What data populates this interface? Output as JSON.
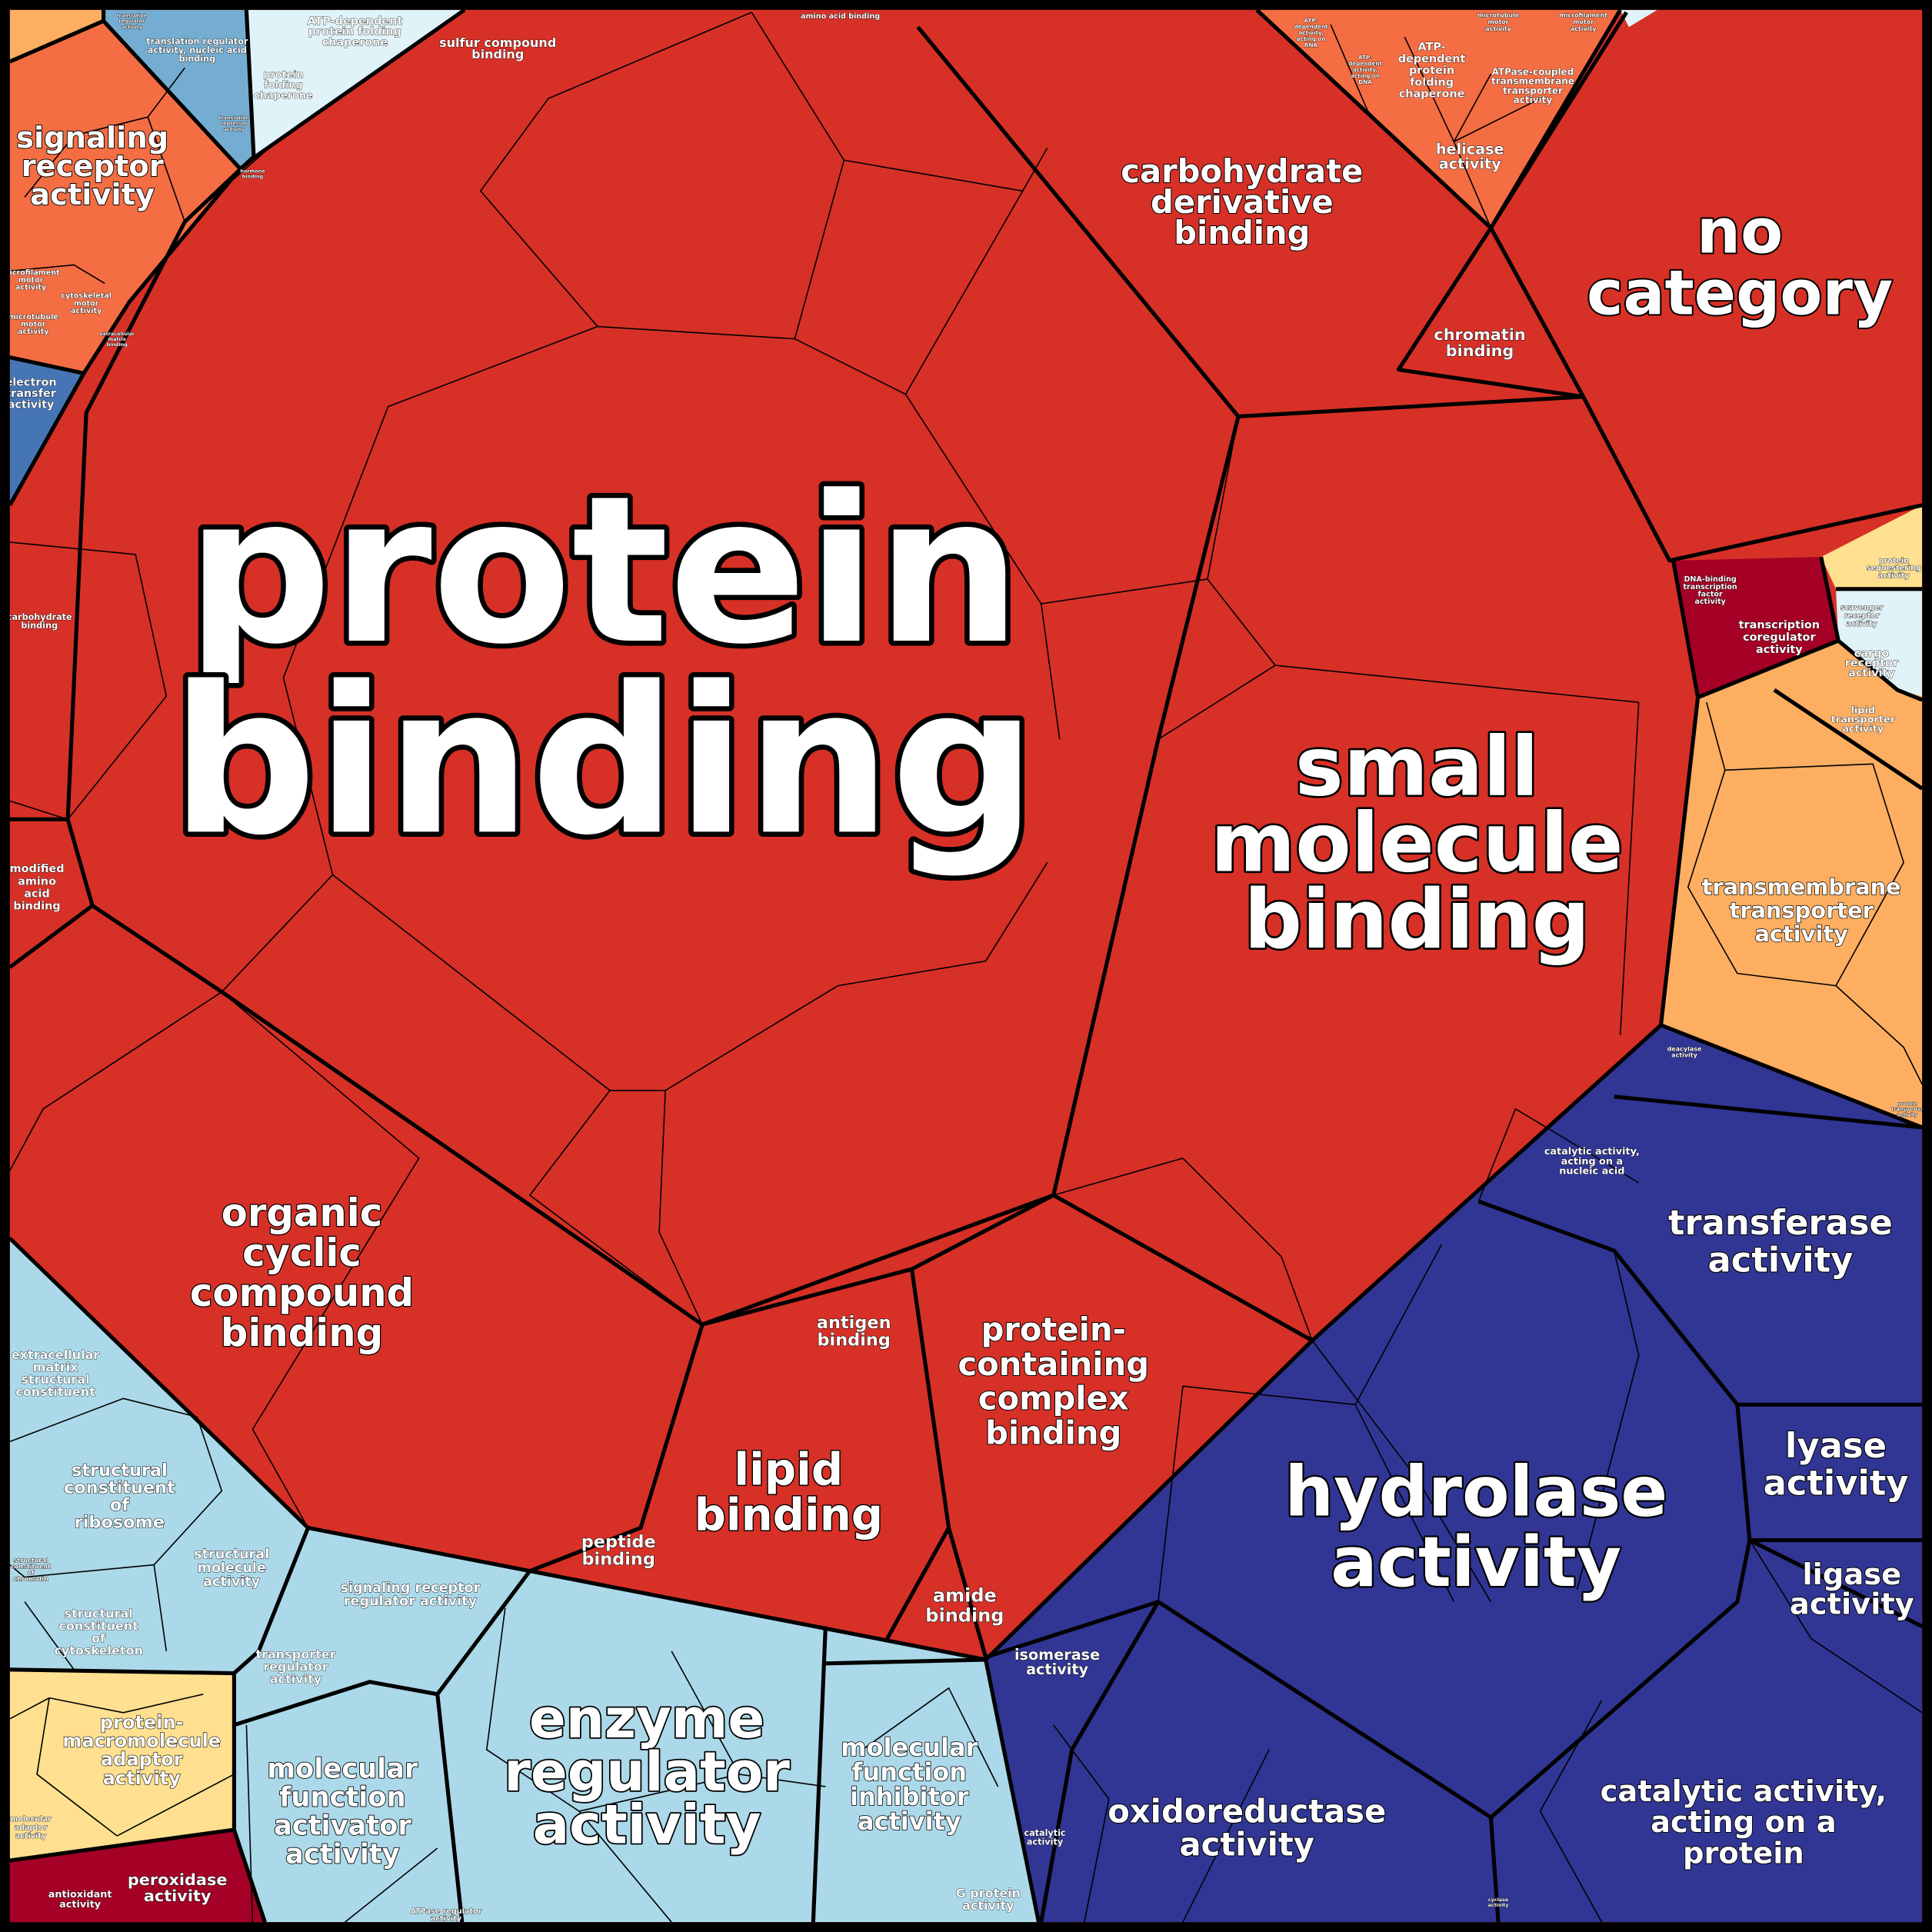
{
  "chart_data": {
    "type": "voronoi-treemap",
    "category_colors": {
      "binding": "#d73027",
      "no_category": "#d73027",
      "catalytic": "#313695",
      "regulator": "#abd9e9",
      "transporter": "#fdae61",
      "transducer": "#f46d43",
      "chaperone": "#e0f3f8",
      "translation": "#74add1",
      "electron": "#4575b4",
      "transcription": "#a50026",
      "adaptor": "#fee090",
      "antioxidant": "#a50026",
      "cargo": "#e0f3f8",
      "sequestering": "#fee090",
      "structural": "#abd9e9"
    },
    "cells": [
      {
        "id": "protein_binding",
        "lines": [
          "protein",
          "binding"
        ],
        "category": "binding"
      },
      {
        "id": "small_molecule_binding",
        "lines": [
          "small",
          "molecule",
          "binding"
        ],
        "category": "binding"
      },
      {
        "id": "no_category",
        "lines": [
          "no",
          "category"
        ],
        "category": "no_category"
      },
      {
        "id": "hydrolase_activity",
        "lines": [
          "hydrolase",
          "activity"
        ],
        "category": "catalytic"
      },
      {
        "id": "enzyme_regulator_activity",
        "lines": [
          "enzyme",
          "regulator",
          "activity"
        ],
        "category": "regulator"
      },
      {
        "id": "organic_cyclic_compound_binding",
        "lines": [
          "organic",
          "cyclic",
          "compound",
          "binding"
        ],
        "category": "binding"
      },
      {
        "id": "carbohydrate_derivative_binding",
        "lines": [
          "carbohydrate",
          "derivative",
          "binding"
        ],
        "category": "binding"
      },
      {
        "id": "signaling_receptor_activity",
        "lines": [
          "signaling",
          "receptor",
          "activity"
        ],
        "category": "transducer"
      },
      {
        "id": "transferase_activity",
        "lines": [
          "transferase",
          "activity"
        ],
        "category": "catalytic"
      },
      {
        "id": "lyase_activity",
        "lines": [
          "lyase",
          "activity"
        ],
        "category": "catalytic"
      },
      {
        "id": "ligase_activity",
        "lines": [
          "ligase",
          "activity"
        ],
        "category": "catalytic"
      },
      {
        "id": "catalytic_protein",
        "lines": [
          "catalytic activity,",
          "acting on a",
          "protein"
        ],
        "category": "catalytic"
      },
      {
        "id": "oxidoreductase_activity",
        "lines": [
          "oxidoreductase",
          "activity"
        ],
        "category": "catalytic"
      },
      {
        "id": "transmembrane_transporter_activity",
        "lines": [
          "transmembrane",
          "transporter",
          "activity"
        ],
        "category": "transporter"
      },
      {
        "id": "lipid_binding",
        "lines": [
          "lipid",
          "binding"
        ],
        "category": "binding"
      },
      {
        "id": "protein_containing_complex_binding",
        "lines": [
          "protein-",
          "containing",
          "complex",
          "binding"
        ],
        "category": "binding"
      },
      {
        "id": "mf_activator_activity",
        "lines": [
          "molecular",
          "function",
          "activator",
          "activity"
        ],
        "category": "regulator"
      },
      {
        "id": "mf_inhibitor_activity",
        "lines": [
          "molecular",
          "function",
          "inhibitor",
          "activity"
        ],
        "category": "regulator"
      },
      {
        "id": "protein_macromolecule_adaptor_activity",
        "lines": [
          "protein-",
          "macromolecule",
          "adaptor",
          "activity"
        ],
        "category": "adaptor"
      },
      {
        "id": "structural_constituent_of_ribosome",
        "lines": [
          "structural",
          "constituent",
          "of",
          "ribosome"
        ],
        "category": "structural"
      },
      {
        "id": "chromatin_binding",
        "lines": [
          "chromatin",
          "binding"
        ],
        "category": "binding"
      },
      {
        "id": "antigen_binding",
        "lines": [
          "antigen",
          "binding"
        ],
        "category": "binding"
      },
      {
        "id": "peptide_binding",
        "lines": [
          "peptide",
          "binding"
        ],
        "category": "binding"
      },
      {
        "id": "amide_binding",
        "lines": [
          "amide",
          "binding"
        ],
        "category": "binding"
      },
      {
        "id": "isomerase_activity",
        "lines": [
          "isomerase",
          "activity"
        ],
        "category": "catalytic"
      },
      {
        "id": "peroxidase_activity",
        "lines": [
          "peroxidase",
          "activity"
        ],
        "category": "antioxidant"
      },
      {
        "id": "helicase_activity",
        "lines": [
          "helicase",
          "activity"
        ],
        "category": "transducer"
      },
      {
        "id": "atp_dep_chaperone_orange",
        "lines": [
          "ATP-",
          "dependent",
          "protein",
          "folding",
          "chaperone"
        ],
        "category": "transducer"
      },
      {
        "id": "atpase_coupled_tm_transporter",
        "lines": [
          "ATPase-coupled",
          "transmembrane",
          "transporter",
          "activity"
        ],
        "category": "transducer"
      },
      {
        "id": "sulfur_compound_binding",
        "lines": [
          "sulfur compound",
          "binding"
        ],
        "category": "binding"
      },
      {
        "id": "atp_dep_chaperone_light",
        "lines": [
          "ATP-dependent",
          "protein folding",
          "chaperone"
        ],
        "category": "chaperone"
      },
      {
        "id": "protein_folding_chaperone",
        "lines": [
          "protein",
          "folding",
          "chaperone"
        ],
        "category": "chaperone"
      },
      {
        "id": "translation_regulator_nucleic",
        "lines": [
          "translation regulator",
          "activity, nucleic acid",
          "binding"
        ],
        "category": "translation"
      },
      {
        "id": "translation_regulator_activity",
        "lines": [
          "translation",
          "regulator",
          "activity"
        ],
        "category": "translation"
      },
      {
        "id": "translation_repressor_activity",
        "lines": [
          "translation",
          "repressor",
          "activity"
        ],
        "category": "translation"
      },
      {
        "id": "electron_transfer_activity",
        "lines": [
          "electron",
          "transfer",
          "activity"
        ],
        "category": "electron"
      },
      {
        "id": "microfilament_motor_left",
        "lines": [
          "microfilament",
          "motor",
          "activity"
        ],
        "category": "transducer"
      },
      {
        "id": "cytoskeletal_motor_activity",
        "lines": [
          "cytoskeletal",
          "motor",
          "activity"
        ],
        "category": "transducer"
      },
      {
        "id": "microtubule_motor_left",
        "lines": [
          "microtubule",
          "motor",
          "activity"
        ],
        "category": "transducer"
      },
      {
        "id": "hormone_binding",
        "lines": [
          "hormone",
          "binding"
        ],
        "category": "binding"
      },
      {
        "id": "extracellular_matrix_binding",
        "lines": [
          "extracellular",
          "matrix",
          "binding"
        ],
        "category": "binding"
      },
      {
        "id": "carbohydrate_binding",
        "lines": [
          "carbohydrate",
          "binding"
        ],
        "category": "binding"
      },
      {
        "id": "modified_amino_acid_binding",
        "lines": [
          "modified",
          "amino",
          "acid",
          "binding"
        ],
        "category": "binding"
      },
      {
        "id": "ecm_structural_constituent",
        "lines": [
          "extracellular",
          "matrix",
          "structural",
          "constituent"
        ],
        "category": "structural"
      },
      {
        "id": "structural_molecule_activity",
        "lines": [
          "structural",
          "molecule",
          "activity"
        ],
        "category": "structural"
      },
      {
        "id": "structural_constituent_of_cytoskeleton",
        "lines": [
          "structural",
          "constituent",
          "of",
          "cytoskeleton"
        ],
        "category": "structural"
      },
      {
        "id": "structural_constituent_of_chromatin",
        "lines": [
          "structural",
          "constituent",
          "of",
          "chromatin"
        ],
        "category": "structural"
      },
      {
        "id": "signaling_receptor_regulator_activity",
        "lines": [
          "signaling receptor",
          "regulator activity"
        ],
        "category": "regulator"
      },
      {
        "id": "transporter_regulator_activity",
        "lines": [
          "transporter",
          "regulator",
          "activity"
        ],
        "category": "regulator"
      },
      {
        "id": "g_protein_activity",
        "lines": [
          "G protein",
          "activity"
        ],
        "category": "regulator"
      },
      {
        "id": "atpase_regulator_activity",
        "lines": [
          "ATPase regulator",
          "activity"
        ],
        "category": "regulator"
      },
      {
        "id": "catalytic_activity_small",
        "lines": [
          "catalytic",
          "activity"
        ],
        "category": "catalytic"
      },
      {
        "id": "catalytic_nucleic_acid",
        "lines": [
          "catalytic activity,",
          "acting on a",
          "nucleic acid"
        ],
        "category": "catalytic"
      },
      {
        "id": "deacylase_activity",
        "lines": [
          "deacylase",
          "activity"
        ],
        "category": "catalytic"
      },
      {
        "id": "cyclase_activity",
        "lines": [
          "cyclase",
          "activity"
        ],
        "category": "catalytic"
      },
      {
        "id": "dna_binding_tf_activity",
        "lines": [
          "DNA-binding",
          "transcription",
          "factor",
          "activity"
        ],
        "category": "transcription"
      },
      {
        "id": "transcription_coregulator_activity",
        "lines": [
          "transcription",
          "coregulator",
          "activity"
        ],
        "category": "transcription"
      },
      {
        "id": "protein_sequestering_activity",
        "lines": [
          "protein",
          "sequestering",
          "activity"
        ],
        "category": "sequestering"
      },
      {
        "id": "scavenger_receptor_activity",
        "lines": [
          "scavenger",
          "receptor",
          "activity"
        ],
        "category": "cargo"
      },
      {
        "id": "cargo_receptor_activity",
        "lines": [
          "cargo",
          "receptor",
          "activity"
        ],
        "category": "cargo"
      },
      {
        "id": "lipid_transporter_activity",
        "lines": [
          "lipid",
          "transporter",
          "activity"
        ],
        "category": "transporter"
      },
      {
        "id": "protein_transporter_activity",
        "lines": [
          "protein",
          "transporter",
          "activity"
        ],
        "category": "transporter"
      },
      {
        "id": "antioxidant_activity",
        "lines": [
          "antioxidant",
          "activity"
        ],
        "category": "antioxidant"
      },
      {
        "id": "molecular_adaptor_activity",
        "lines": [
          "molecular",
          "adaptor",
          "activity"
        ],
        "category": "adaptor"
      },
      {
        "id": "amino_acid_binding",
        "lines": [
          "amino acid binding"
        ],
        "category": "binding"
      },
      {
        "id": "microtubule_motor_top",
        "lines": [
          "microtubule",
          "motor",
          "activity"
        ],
        "category": "transducer"
      },
      {
        "id": "microfilament_motor_top",
        "lines": [
          "microfilament",
          "motor",
          "activity"
        ],
        "category": "transducer"
      },
      {
        "id": "atp_dep_dna",
        "lines": [
          "ATP-",
          "dependent",
          "activity,",
          "acting on",
          "DNA"
        ],
        "category": "transducer"
      },
      {
        "id": "atp_dep_rna",
        "lines": [
          "ATP-",
          "dependent",
          "activity,",
          "acting on",
          "RNA"
        ],
        "category": "transducer"
      }
    ]
  }
}
